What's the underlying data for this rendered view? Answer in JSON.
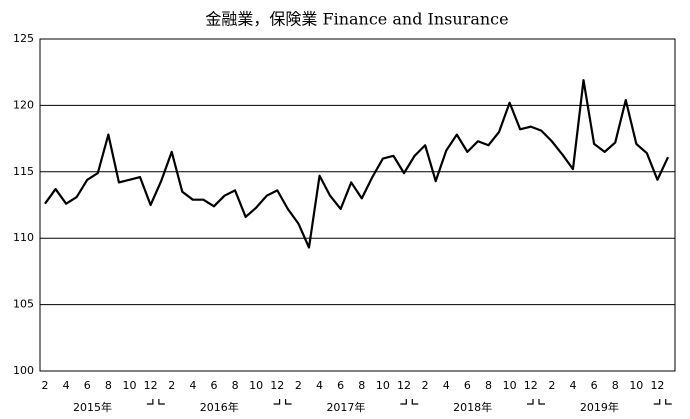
{
  "chart_data": {
    "type": "line",
    "title": "金融業，保険業 Finance and Insurance",
    "categories": [
      "2",
      null,
      "4",
      null,
      "6",
      null,
      "8",
      null,
      "10",
      null,
      "12",
      null,
      "2",
      null,
      "4",
      null,
      "6",
      null,
      "8",
      null,
      "10",
      null,
      "12",
      null,
      "2",
      null,
      "4",
      null,
      "6",
      null,
      "8",
      null,
      "10",
      null,
      "12",
      null,
      "2",
      null,
      "4",
      null,
      "6",
      null,
      "8",
      null,
      "10",
      null,
      "12",
      null,
      "2",
      null,
      "4",
      null,
      "6",
      null,
      "8",
      null,
      "10",
      null,
      "12",
      null
    ],
    "years": [
      "2015年",
      "2016年",
      "2017年",
      "2018年",
      "2019年"
    ],
    "series": [
      {
        "name": "Finance and Insurance",
        "color": "#000000",
        "values": [
          112.6,
          113.7,
          112.6,
          113.1,
          114.4,
          114.9,
          117.8,
          114.2,
          114.4,
          114.6,
          112.5,
          114.3,
          116.5,
          113.5,
          112.9,
          112.9,
          112.4,
          113.2,
          113.6,
          111.6,
          112.3,
          113.2,
          113.6,
          112.2,
          111.1,
          109.3,
          114.7,
          113.2,
          112.2,
          114.2,
          113.0,
          114.6,
          116.0,
          116.2,
          114.9,
          116.2,
          117.0,
          114.3,
          116.6,
          117.8,
          116.5,
          117.3,
          117.0,
          118.0,
          120.2,
          118.2,
          118.4,
          118.1,
          117.3,
          116.3,
          115.2,
          121.9,
          117.1,
          116.5,
          117.2,
          120.4,
          117.1,
          116.4,
          114.4,
          116.1
        ]
      }
    ],
    "ylim": [
      100,
      125
    ],
    "yticks": [
      100,
      105,
      110,
      115,
      120,
      125
    ],
    "grid": true
  }
}
